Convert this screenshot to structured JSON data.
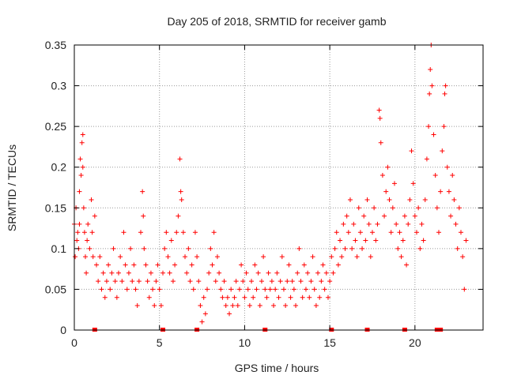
{
  "chart_data": {
    "type": "scatter",
    "title": "Day 205 of 2018, SRMTID for receiver gamb",
    "xlabel": "GPS time / hours",
    "ylabel": "SRMTID / TECUs",
    "xlim": [
      0,
      24.0
    ],
    "ylim": [
      0,
      0.35
    ],
    "xticks": [
      0,
      5,
      10,
      15,
      20
    ],
    "yticks": [
      0,
      0.05,
      0.1,
      0.15,
      0.2,
      0.25,
      0.3,
      0.35
    ],
    "ytick_labels": [
      "0",
      "0.05",
      "0.1",
      "0.15",
      "0.2",
      "0.25",
      "0.3",
      "0.35"
    ],
    "grid": true,
    "marker": "+",
    "color": "#ff0000",
    "series": [
      {
        "name": "SRMTID",
        "points": [
          [
            0.0,
            0.13
          ],
          [
            0.05,
            0.09
          ],
          [
            0.1,
            0.15
          ],
          [
            0.15,
            0.11
          ],
          [
            0.2,
            0.12
          ],
          [
            0.25,
            0.1
          ],
          [
            0.3,
            0.13
          ],
          [
            0.3,
            0.17
          ],
          [
            0.35,
            0.21
          ],
          [
            0.4,
            0.19
          ],
          [
            0.45,
            0.23
          ],
          [
            0.5,
            0.24
          ],
          [
            0.5,
            0.2
          ],
          [
            0.55,
            0.15
          ],
          [
            0.6,
            0.12
          ],
          [
            0.65,
            0.09
          ],
          [
            0.7,
            0.07
          ],
          [
            0.75,
            0.11
          ],
          [
            0.8,
            0.13
          ],
          [
            0.9,
            0.1
          ],
          [
            1.0,
            0.16
          ],
          [
            1.05,
            0.12
          ],
          [
            1.1,
            0.09
          ],
          [
            1.2,
            0.14
          ],
          [
            1.3,
            0.08
          ],
          [
            1.4,
            0.06
          ],
          [
            1.5,
            0.09
          ],
          [
            1.6,
            0.05
          ],
          [
            1.7,
            0.07
          ],
          [
            1.8,
            0.04
          ],
          [
            1.9,
            0.06
          ],
          [
            2.0,
            0.08
          ],
          [
            2.1,
            0.05
          ],
          [
            2.2,
            0.07
          ],
          [
            2.3,
            0.1
          ],
          [
            2.4,
            0.06
          ],
          [
            2.5,
            0.04
          ],
          [
            2.6,
            0.07
          ],
          [
            2.7,
            0.09
          ],
          [
            2.8,
            0.06
          ],
          [
            2.9,
            0.12
          ],
          [
            3.0,
            0.08
          ],
          [
            3.1,
            0.05
          ],
          [
            3.2,
            0.07
          ],
          [
            3.3,
            0.1
          ],
          [
            3.4,
            0.06
          ],
          [
            3.5,
            0.08
          ],
          [
            3.6,
            0.05
          ],
          [
            3.7,
            0.03
          ],
          [
            3.8,
            0.06
          ],
          [
            3.9,
            0.12
          ],
          [
            4.0,
            0.17
          ],
          [
            4.05,
            0.14
          ],
          [
            4.1,
            0.1
          ],
          [
            4.2,
            0.08
          ],
          [
            4.3,
            0.06
          ],
          [
            4.4,
            0.04
          ],
          [
            4.5,
            0.07
          ],
          [
            4.6,
            0.05
          ],
          [
            4.7,
            0.03
          ],
          [
            4.8,
            0.06
          ],
          [
            4.9,
            0.08
          ],
          [
            5.0,
            0.05
          ],
          [
            5.1,
            0.03
          ],
          [
            5.2,
            0.07
          ],
          [
            5.3,
            0.1
          ],
          [
            5.4,
            0.12
          ],
          [
            5.5,
            0.09
          ],
          [
            5.6,
            0.07
          ],
          [
            5.7,
            0.11
          ],
          [
            5.8,
            0.06
          ],
          [
            5.9,
            0.08
          ],
          [
            6.0,
            0.12
          ],
          [
            6.1,
            0.14
          ],
          [
            6.2,
            0.21
          ],
          [
            6.25,
            0.17
          ],
          [
            6.3,
            0.16
          ],
          [
            6.4,
            0.12
          ],
          [
            6.5,
            0.09
          ],
          [
            6.6,
            0.07
          ],
          [
            6.7,
            0.1
          ],
          [
            6.8,
            0.06
          ],
          [
            6.9,
            0.08
          ],
          [
            7.0,
            0.05
          ],
          [
            7.1,
            0.12
          ],
          [
            7.2,
            0.09
          ],
          [
            7.3,
            0.06
          ],
          [
            7.4,
            0.03
          ],
          [
            7.5,
            0.01
          ],
          [
            7.6,
            0.04
          ],
          [
            7.7,
            0.02
          ],
          [
            7.8,
            0.05
          ],
          [
            7.9,
            0.07
          ],
          [
            8.0,
            0.1
          ],
          [
            8.1,
            0.08
          ],
          [
            8.2,
            0.12
          ],
          [
            8.3,
            0.06
          ],
          [
            8.4,
            0.09
          ],
          [
            8.5,
            0.07
          ],
          [
            8.6,
            0.05
          ],
          [
            8.7,
            0.04
          ],
          [
            8.8,
            0.06
          ],
          [
            8.9,
            0.03
          ],
          [
            9.0,
            0.04
          ],
          [
            9.1,
            0.02
          ],
          [
            9.2,
            0.05
          ],
          [
            9.3,
            0.03
          ],
          [
            9.4,
            0.04
          ],
          [
            9.5,
            0.06
          ],
          [
            9.6,
            0.03
          ],
          [
            9.7,
            0.05
          ],
          [
            9.8,
            0.08
          ],
          [
            9.9,
            0.06
          ],
          [
            10.0,
            0.04
          ],
          [
            10.1,
            0.07
          ],
          [
            10.2,
            0.05
          ],
          [
            10.3,
            0.03
          ],
          [
            10.4,
            0.06
          ],
          [
            10.5,
            0.04
          ],
          [
            10.6,
            0.08
          ],
          [
            10.7,
            0.05
          ],
          [
            10.8,
            0.07
          ],
          [
            10.9,
            0.03
          ],
          [
            11.0,
            0.06
          ],
          [
            11.1,
            0.09
          ],
          [
            11.2,
            0.05
          ],
          [
            11.3,
            0.04
          ],
          [
            11.4,
            0.07
          ],
          [
            11.5,
            0.05
          ],
          [
            11.6,
            0.06
          ],
          [
            11.7,
            0.03
          ],
          [
            11.8,
            0.05
          ],
          [
            11.9,
            0.07
          ],
          [
            12.0,
            0.04
          ],
          [
            12.1,
            0.06
          ],
          [
            12.2,
            0.09
          ],
          [
            12.3,
            0.05
          ],
          [
            12.4,
            0.03
          ],
          [
            12.5,
            0.06
          ],
          [
            12.6,
            0.08
          ],
          [
            12.7,
            0.04
          ],
          [
            12.8,
            0.06
          ],
          [
            12.9,
            0.05
          ],
          [
            13.0,
            0.03
          ],
          [
            13.1,
            0.07
          ],
          [
            13.2,
            0.1
          ],
          [
            13.3,
            0.06
          ],
          [
            13.4,
            0.04
          ],
          [
            13.5,
            0.08
          ],
          [
            13.6,
            0.05
          ],
          [
            13.7,
            0.07
          ],
          [
            13.8,
            0.04
          ],
          [
            13.9,
            0.06
          ],
          [
            14.0,
            0.09
          ],
          [
            14.1,
            0.05
          ],
          [
            14.2,
            0.03
          ],
          [
            14.3,
            0.07
          ],
          [
            14.4,
            0.04
          ],
          [
            14.5,
            0.06
          ],
          [
            14.6,
            0.08
          ],
          [
            14.7,
            0.05
          ],
          [
            14.8,
            0.07
          ],
          [
            14.9,
            0.04
          ],
          [
            15.0,
            0.06
          ],
          [
            15.1,
            0.09
          ],
          [
            15.2,
            0.07
          ],
          [
            15.3,
            0.1
          ],
          [
            15.4,
            0.12
          ],
          [
            15.5,
            0.08
          ],
          [
            15.6,
            0.11
          ],
          [
            15.7,
            0.09
          ],
          [
            15.8,
            0.13
          ],
          [
            15.9,
            0.1
          ],
          [
            16.0,
            0.14
          ],
          [
            16.1,
            0.12
          ],
          [
            16.2,
            0.16
          ],
          [
            16.3,
            0.1
          ],
          [
            16.4,
            0.13
          ],
          [
            16.5,
            0.11
          ],
          [
            16.6,
            0.09
          ],
          [
            16.7,
            0.15
          ],
          [
            16.8,
            0.12
          ],
          [
            16.9,
            0.1
          ],
          [
            17.0,
            0.14
          ],
          [
            17.1,
            0.11
          ],
          [
            17.2,
            0.16
          ],
          [
            17.3,
            0.13
          ],
          [
            17.4,
            0.09
          ],
          [
            17.5,
            0.12
          ],
          [
            17.6,
            0.15
          ],
          [
            17.7,
            0.11
          ],
          [
            17.8,
            0.13
          ],
          [
            17.9,
            0.27
          ],
          [
            17.95,
            0.26
          ],
          [
            18.0,
            0.23
          ],
          [
            18.1,
            0.19
          ],
          [
            18.2,
            0.14
          ],
          [
            18.3,
            0.17
          ],
          [
            18.4,
            0.2
          ],
          [
            18.5,
            0.16
          ],
          [
            18.6,
            0.12
          ],
          [
            18.7,
            0.15
          ],
          [
            18.8,
            0.18
          ],
          [
            18.9,
            0.13
          ],
          [
            19.0,
            0.1
          ],
          [
            19.1,
            0.12
          ],
          [
            19.2,
            0.09
          ],
          [
            19.3,
            0.11
          ],
          [
            19.4,
            0.14
          ],
          [
            19.5,
            0.08
          ],
          [
            19.6,
            0.13
          ],
          [
            19.7,
            0.16
          ],
          [
            19.8,
            0.22
          ],
          [
            19.9,
            0.18
          ],
          [
            20.0,
            0.14
          ],
          [
            20.1,
            0.12
          ],
          [
            20.2,
            0.15
          ],
          [
            20.3,
            0.1
          ],
          [
            20.4,
            0.13
          ],
          [
            20.5,
            0.11
          ],
          [
            20.6,
            0.16
          ],
          [
            20.7,
            0.21
          ],
          [
            20.8,
            0.25
          ],
          [
            20.85,
            0.29
          ],
          [
            20.9,
            0.32
          ],
          [
            20.95,
            0.35
          ],
          [
            21.0,
            0.3
          ],
          [
            21.1,
            0.24
          ],
          [
            21.2,
            0.19
          ],
          [
            21.3,
            0.15
          ],
          [
            21.4,
            0.12
          ],
          [
            21.5,
            0.17
          ],
          [
            21.6,
            0.22
          ],
          [
            21.7,
            0.25
          ],
          [
            21.75,
            0.29
          ],
          [
            21.8,
            0.3
          ],
          [
            21.9,
            0.2
          ],
          [
            22.0,
            0.17
          ],
          [
            22.1,
            0.14
          ],
          [
            22.2,
            0.19
          ],
          [
            22.3,
            0.16
          ],
          [
            22.4,
            0.13
          ],
          [
            22.5,
            0.1
          ],
          [
            22.6,
            0.15
          ],
          [
            22.7,
            0.12
          ],
          [
            22.8,
            0.09
          ],
          [
            22.9,
            0.05
          ],
          [
            23.0,
            0.11
          ]
        ]
      }
    ],
    "zero_markers_x": [
      1.2,
      5.2,
      7.2,
      11.2,
      15.1,
      17.2,
      19.4,
      21.3,
      21.4,
      21.5
    ]
  }
}
